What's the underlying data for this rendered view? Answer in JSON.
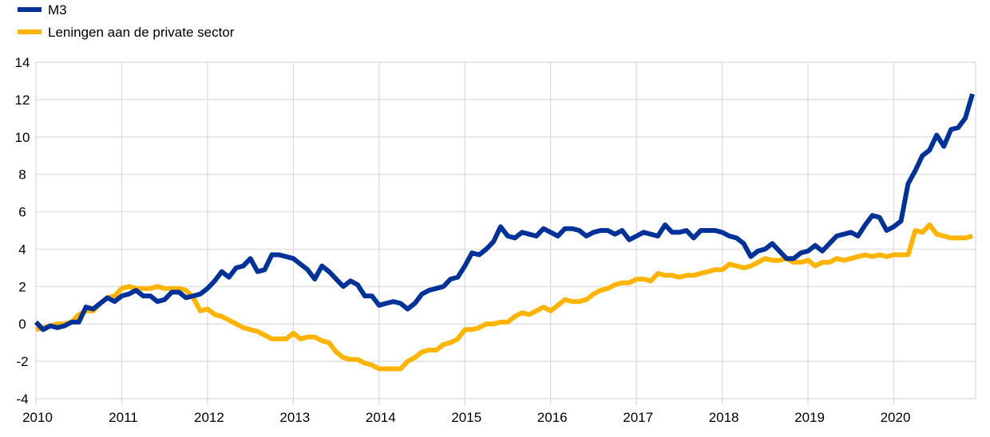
{
  "chart_data": {
    "type": "line",
    "title": "",
    "xlabel": "",
    "ylabel": "",
    "ylim": [
      -4,
      14
    ],
    "yticks": [
      "-4",
      "-2",
      "0",
      "2",
      "4",
      "6",
      "8",
      "10",
      "12",
      "14"
    ],
    "xticks": [
      "2010",
      "2011",
      "2012",
      "2013",
      "2014",
      "2015",
      "2016",
      "2017",
      "2018",
      "2019",
      "2020"
    ],
    "x_start": "2010-01",
    "x_frequency": "monthly",
    "grid": true,
    "legend_position": "top-left",
    "series": [
      {
        "name": "M3",
        "color": "#003299",
        "values": [
          0.1,
          -0.3,
          -0.1,
          -0.2,
          -0.1,
          0.1,
          0.1,
          0.9,
          0.8,
          1.1,
          1.4,
          1.2,
          1.5,
          1.6,
          1.8,
          1.5,
          1.5,
          1.2,
          1.3,
          1.7,
          1.7,
          1.4,
          1.5,
          1.6,
          1.9,
          2.3,
          2.8,
          2.5,
          3.0,
          3.1,
          3.5,
          2.8,
          2.9,
          3.7,
          3.7,
          3.6,
          3.5,
          3.2,
          2.9,
          2.4,
          3.1,
          2.8,
          2.4,
          2.0,
          2.3,
          2.1,
          1.5,
          1.5,
          1.0,
          1.1,
          1.2,
          1.1,
          0.8,
          1.1,
          1.6,
          1.8,
          1.9,
          2.0,
          2.4,
          2.5,
          3.1,
          3.8,
          3.7,
          4.0,
          4.4,
          5.2,
          4.7,
          4.6,
          4.9,
          4.8,
          4.7,
          5.1,
          4.9,
          4.7,
          5.1,
          5.1,
          5.0,
          4.7,
          4.9,
          5.0,
          5.0,
          4.8,
          5.0,
          4.5,
          4.7,
          4.9,
          4.8,
          4.7,
          5.3,
          4.9,
          4.9,
          5.0,
          4.6,
          5.0,
          5.0,
          5.0,
          4.9,
          4.7,
          4.6,
          4.3,
          3.6,
          3.9,
          4.0,
          4.3,
          3.9,
          3.5,
          3.5,
          3.8,
          3.9,
          4.2,
          3.9,
          4.3,
          4.7,
          4.8,
          4.9,
          4.7,
          5.3,
          5.8,
          5.7,
          5.0,
          5.2,
          5.5,
          7.5,
          8.2,
          9.0,
          9.3,
          10.1,
          9.5,
          10.4,
          10.5,
          11.0,
          12.3
        ]
      },
      {
        "name": "Leningen aan de private sector",
        "color": "#FFB400",
        "values": [
          -0.3,
          -0.2,
          -0.1,
          0.0,
          0.0,
          0.1,
          0.5,
          0.7,
          0.7,
          1.1,
          1.4,
          1.5,
          1.9,
          2.0,
          1.9,
          1.9,
          1.9,
          2.0,
          1.9,
          1.9,
          1.9,
          1.8,
          1.4,
          0.7,
          0.8,
          0.5,
          0.4,
          0.2,
          0.0,
          -0.2,
          -0.3,
          -0.4,
          -0.6,
          -0.8,
          -0.8,
          -0.8,
          -0.5,
          -0.8,
          -0.7,
          -0.7,
          -0.9,
          -1.0,
          -1.5,
          -1.8,
          -1.9,
          -1.9,
          -2.1,
          -2.2,
          -2.4,
          -2.4,
          -2.4,
          -2.4,
          -2.0,
          -1.8,
          -1.5,
          -1.4,
          -1.4,
          -1.1,
          -1.0,
          -0.8,
          -0.3,
          -0.3,
          -0.2,
          0.0,
          0.0,
          0.1,
          0.1,
          0.4,
          0.6,
          0.5,
          0.7,
          0.9,
          0.7,
          1.0,
          1.3,
          1.2,
          1.2,
          1.3,
          1.6,
          1.8,
          1.9,
          2.1,
          2.2,
          2.2,
          2.4,
          2.4,
          2.3,
          2.7,
          2.6,
          2.6,
          2.5,
          2.6,
          2.6,
          2.7,
          2.8,
          2.9,
          2.9,
          3.2,
          3.1,
          3.0,
          3.1,
          3.3,
          3.5,
          3.4,
          3.4,
          3.5,
          3.3,
          3.3,
          3.4,
          3.1,
          3.3,
          3.3,
          3.5,
          3.4,
          3.5,
          3.6,
          3.7,
          3.6,
          3.7,
          3.6,
          3.7,
          3.7,
          3.7,
          5.0,
          4.9,
          5.3,
          4.8,
          4.7,
          4.6,
          4.6,
          4.6,
          4.7
        ]
      }
    ]
  }
}
